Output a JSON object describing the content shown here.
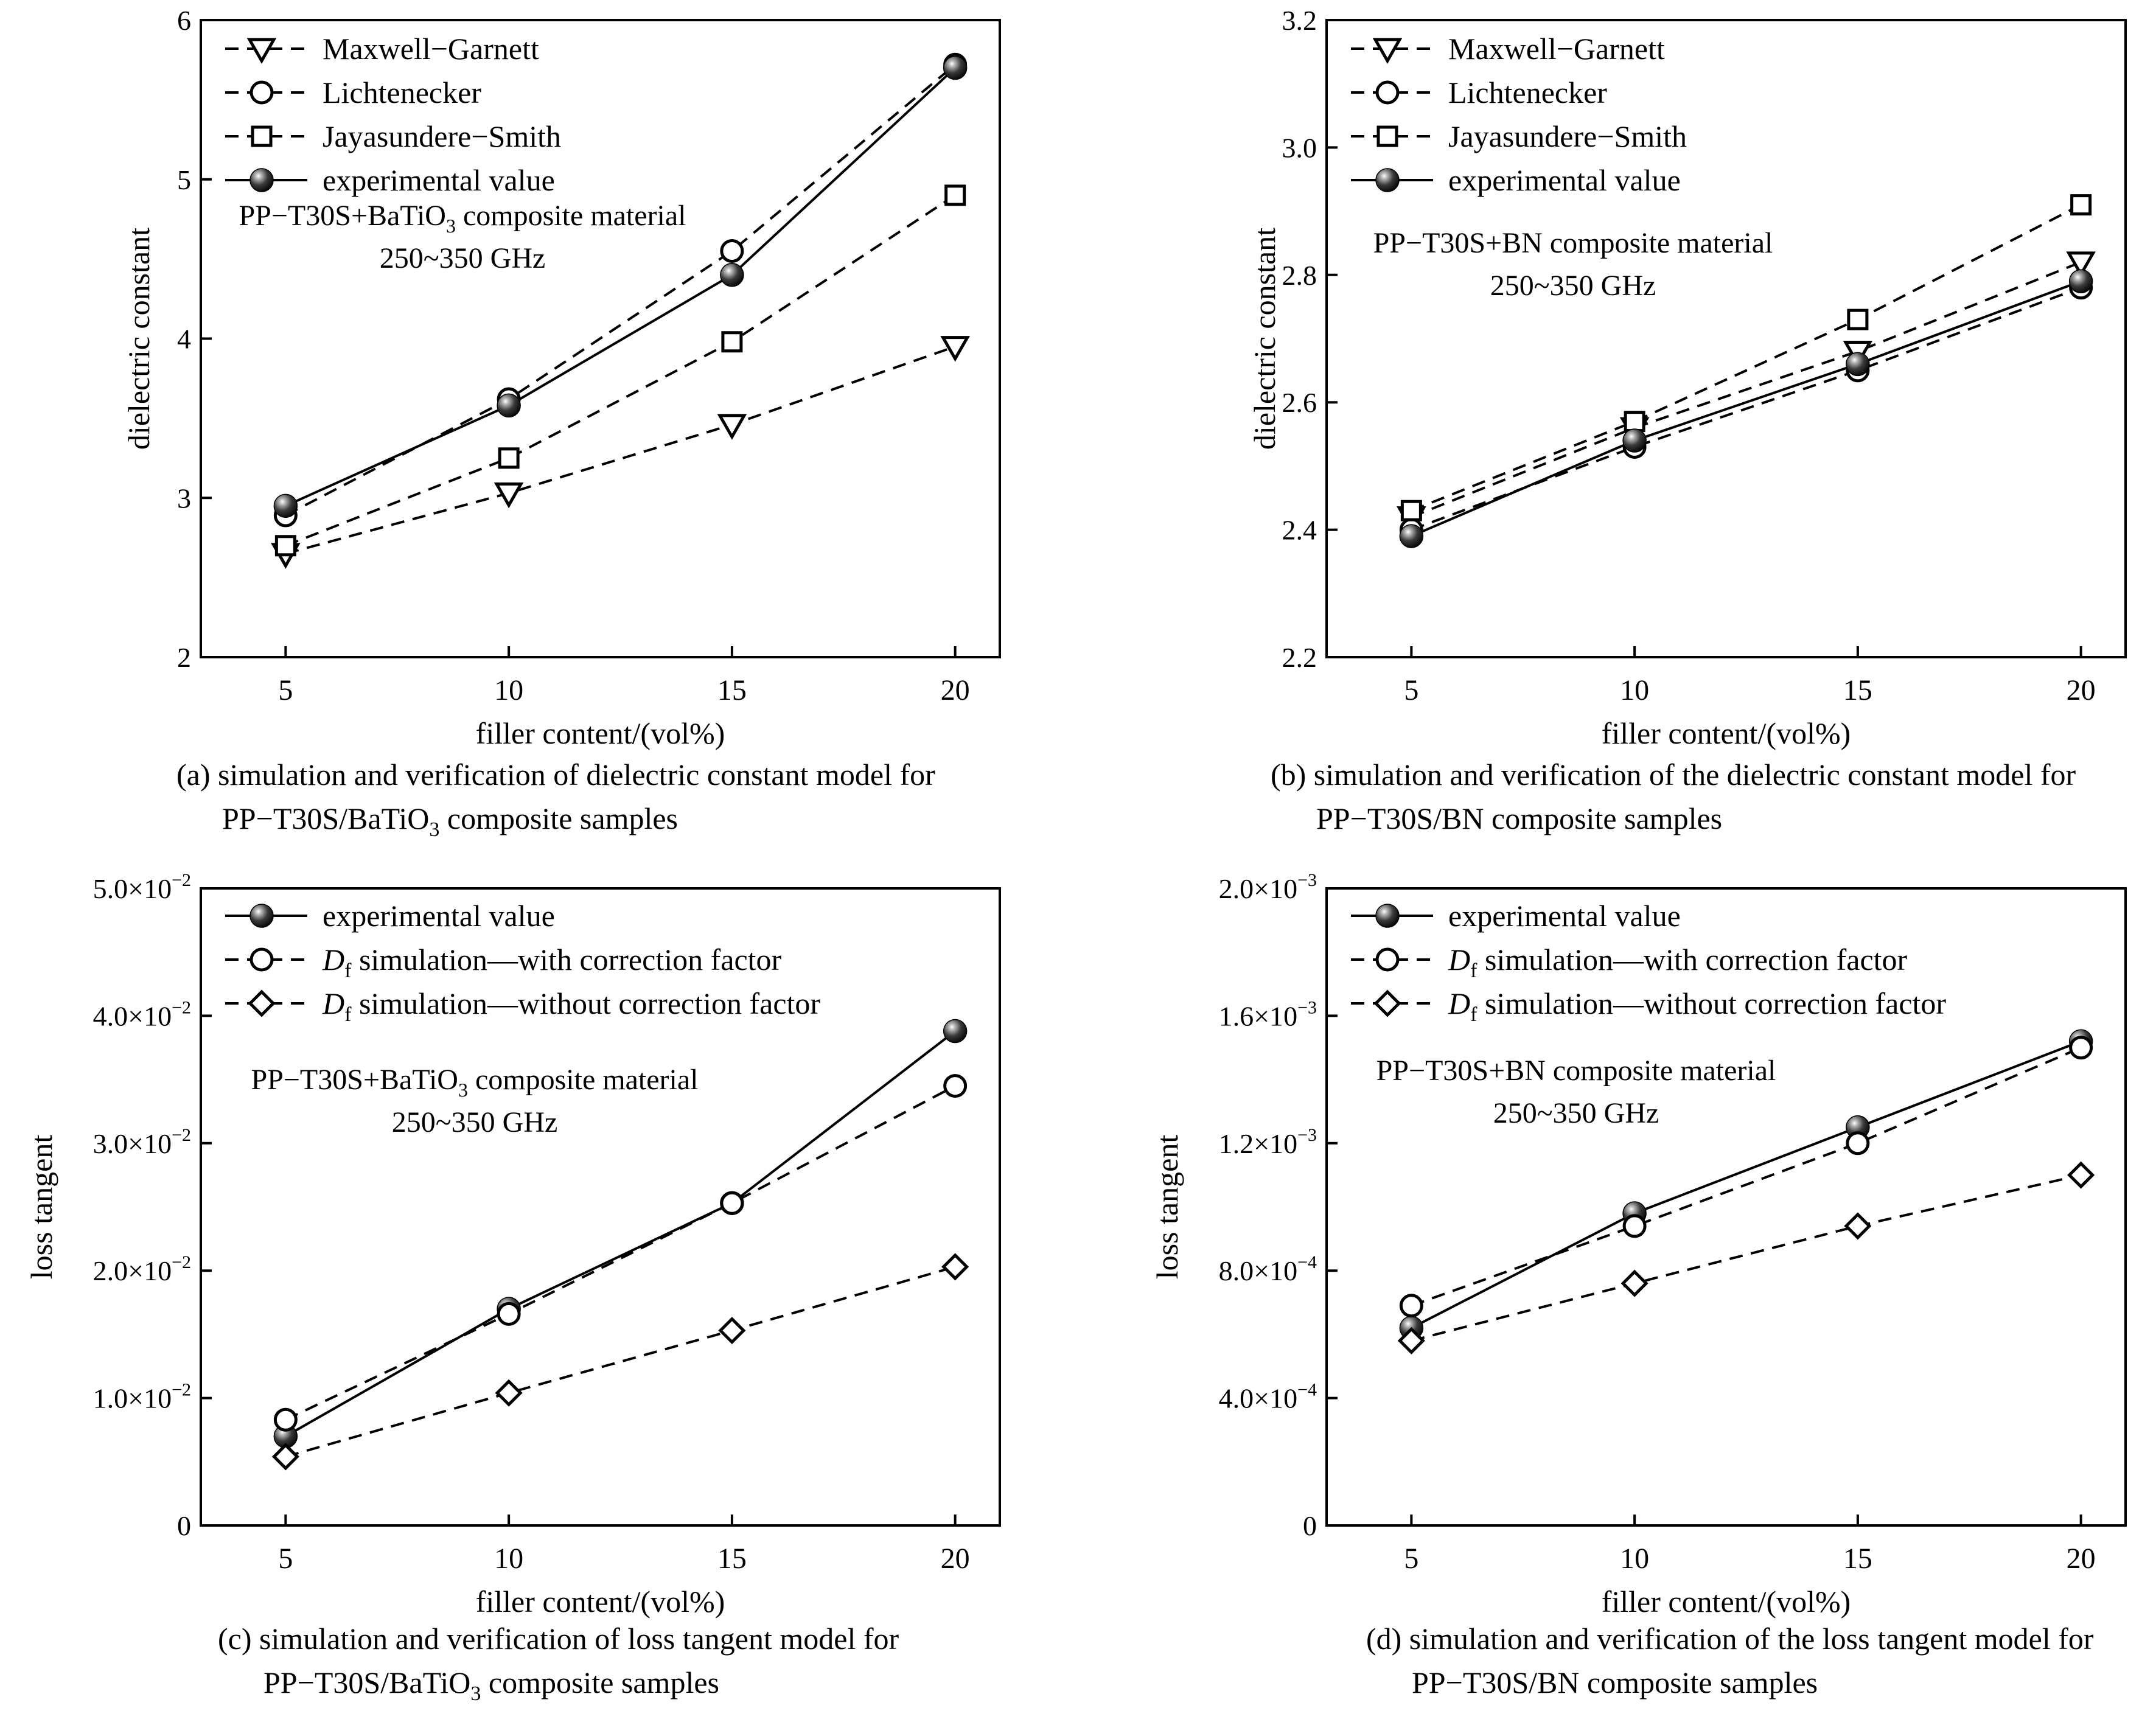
{
  "chart_data": [
    {
      "id": "a",
      "type": "line",
      "xlabel": "filler content/(vol%)",
      "ylabel": "dielectric constant",
      "x": [
        5,
        10,
        15,
        20
      ],
      "xticks": [
        "5",
        "10",
        "15",
        "20"
      ],
      "xlim": [
        3.1,
        21.0
      ],
      "ylim": [
        2,
        6
      ],
      "yticks": [
        {
          "v": 2,
          "m": "2",
          "e": ""
        },
        {
          "v": 3,
          "m": "3",
          "e": ""
        },
        {
          "v": 4,
          "m": "4",
          "e": ""
        },
        {
          "v": 5,
          "m": "5",
          "e": ""
        },
        {
          "v": 6,
          "m": "6",
          "e": ""
        }
      ],
      "legend_position": "top-left",
      "series": [
        {
          "name": "Maxwell−Garnett",
          "marker": "triangle-down",
          "style": "dashed",
          "values": [
            2.65,
            3.03,
            3.46,
            3.95
          ]
        },
        {
          "name": "Lichtenecker",
          "marker": "circle-open",
          "style": "dashed",
          "values": [
            2.89,
            3.62,
            4.55,
            5.72
          ]
        },
        {
          "name": "Jayasundere−Smith",
          "marker": "square-open",
          "style": "dashed",
          "values": [
            2.7,
            3.25,
            3.98,
            4.9
          ]
        },
        {
          "name": "experimental value",
          "marker": "sphere",
          "style": "solid",
          "values": [
            2.95,
            3.58,
            4.4,
            5.7
          ]
        }
      ],
      "annotation": {
        "pre": "PP−T30S+BaTiO",
        "sub": "3",
        "post": " composite material",
        "line2": "250~350 GHz"
      },
      "caption": {
        "line1": "(a) simulation and verification of dielectric constant model for",
        "line2_pre": "PP−T30S/BaTiO",
        "line2_sub": "3",
        "line2_post": " composite samples"
      }
    },
    {
      "id": "b",
      "type": "line",
      "xlabel": "filler content/(vol%)",
      "ylabel": "dielectric constant",
      "x": [
        5,
        10,
        15,
        20
      ],
      "xticks": [
        "5",
        "10",
        "15",
        "20"
      ],
      "xlim": [
        3.1,
        21.0
      ],
      "ylim": [
        2.2,
        3.2
      ],
      "yticks": [
        {
          "v": 2.2,
          "m": "2.2",
          "e": ""
        },
        {
          "v": 2.4,
          "m": "2.4",
          "e": ""
        },
        {
          "v": 2.6,
          "m": "2.6",
          "e": ""
        },
        {
          "v": 2.8,
          "m": "2.8",
          "e": ""
        },
        {
          "v": 3.0,
          "m": "3.0",
          "e": ""
        },
        {
          "v": 3.2,
          "m": "3.2",
          "e": ""
        }
      ],
      "legend_position": "top-left",
      "series": [
        {
          "name": "Maxwell−Garnett",
          "marker": "triangle-down",
          "style": "dashed",
          "values": [
            2.42,
            2.56,
            2.68,
            2.82
          ]
        },
        {
          "name": "Lichtenecker",
          "marker": "circle-open",
          "style": "dashed",
          "values": [
            2.4,
            2.53,
            2.65,
            2.78
          ]
        },
        {
          "name": "Jayasundere−Smith",
          "marker": "square-open",
          "style": "dashed",
          "values": [
            2.43,
            2.57,
            2.73,
            2.91
          ]
        },
        {
          "name": "experimental value",
          "marker": "sphere",
          "style": "solid",
          "values": [
            2.39,
            2.54,
            2.66,
            2.79
          ]
        }
      ],
      "annotation": {
        "pre": "PP−T30S+BN composite material",
        "sub": "",
        "post": "",
        "line2": "250~350 GHz"
      },
      "caption": {
        "line1": "(b) simulation and verification of the dielectric constant model for",
        "line2_pre": "PP−T30S/BN composite samples",
        "line2_sub": "",
        "line2_post": ""
      }
    },
    {
      "id": "c",
      "type": "line",
      "xlabel": "filler content/(vol%)",
      "ylabel": "loss tangent",
      "x": [
        5,
        10,
        15,
        20
      ],
      "xticks": [
        "5",
        "10",
        "15",
        "20"
      ],
      "xlim": [
        3.1,
        21.0
      ],
      "ylim": [
        0,
        0.05
      ],
      "yticks": [
        {
          "v": 0,
          "m": "0",
          "e": ""
        },
        {
          "v": 0.01,
          "m": "1.0×10",
          "e": "−2"
        },
        {
          "v": 0.02,
          "m": "2.0×10",
          "e": "−2"
        },
        {
          "v": 0.03,
          "m": "3.0×10",
          "e": "−2"
        },
        {
          "v": 0.04,
          "m": "4.0×10",
          "e": "−2"
        },
        {
          "v": 0.05,
          "m": "5.0×10",
          "e": "−2"
        }
      ],
      "legend_position": "top-left",
      "series": [
        {
          "name": "experimental value",
          "marker": "sphere",
          "style": "solid",
          "values": [
            0.007,
            0.017,
            0.0253,
            0.0388
          ]
        },
        {
          "name": "simulation—with correction factor",
          "name_prefix": "D",
          "name_sub": "f",
          "marker": "circle-open",
          "style": "dashed",
          "values": [
            0.0083,
            0.0166,
            0.0253,
            0.0345
          ]
        },
        {
          "name": "simulation—without correction factor",
          "name_prefix": "D",
          "name_sub": "f",
          "marker": "diamond-open",
          "style": "dashed",
          "values": [
            0.0054,
            0.0104,
            0.0153,
            0.0203
          ]
        }
      ],
      "annotation": {
        "pre": "PP−T30S+BaTiO",
        "sub": "3",
        "post": " composite material",
        "line2": "250~350 GHz"
      },
      "caption": {
        "line1": "(c) simulation and verification of loss tangent model for",
        "line2_pre": "PP−T30S/BaTiO",
        "line2_sub": "3",
        "line2_post": " composite samples"
      }
    },
    {
      "id": "d",
      "type": "line",
      "xlabel": "filler content/(vol%)",
      "ylabel": "loss tangent",
      "x": [
        5,
        10,
        15,
        20
      ],
      "xticks": [
        "5",
        "10",
        "15",
        "20"
      ],
      "xlim": [
        3.1,
        21.0
      ],
      "ylim": [
        0,
        0.002
      ],
      "yticks": [
        {
          "v": 0,
          "m": "0",
          "e": ""
        },
        {
          "v": 0.0004,
          "m": "4.0×10",
          "e": "−4"
        },
        {
          "v": 0.0008,
          "m": "8.0×10",
          "e": "−4"
        },
        {
          "v": 0.0012,
          "m": "1.2×10",
          "e": "−3"
        },
        {
          "v": 0.0016,
          "m": "1.6×10",
          "e": "−3"
        },
        {
          "v": 0.002,
          "m": "2.0×10",
          "e": "−3"
        }
      ],
      "legend_position": "top-left",
      "series": [
        {
          "name": "experimental value",
          "marker": "sphere",
          "style": "solid",
          "values": [
            0.00062,
            0.00098,
            0.00125,
            0.00152
          ]
        },
        {
          "name": "simulation—with correction factor",
          "name_prefix": "D",
          "name_sub": "f",
          "marker": "circle-open",
          "style": "dashed",
          "values": [
            0.00069,
            0.00094,
            0.0012,
            0.0015
          ]
        },
        {
          "name": "simulation—without correction factor",
          "name_prefix": "D",
          "name_sub": "f",
          "marker": "diamond-open",
          "style": "dashed",
          "values": [
            0.00058,
            0.00076,
            0.00094,
            0.0011
          ]
        }
      ],
      "annotation": {
        "pre": "PP−T30S+BN composite material",
        "sub": "",
        "post": "",
        "line2": "250~350 GHz"
      },
      "caption": {
        "line1": "(d) simulation and verification of the loss tangent model for",
        "line2_pre": "PP−T30S/BN composite samples",
        "line2_sub": "",
        "line2_post": ""
      }
    }
  ]
}
